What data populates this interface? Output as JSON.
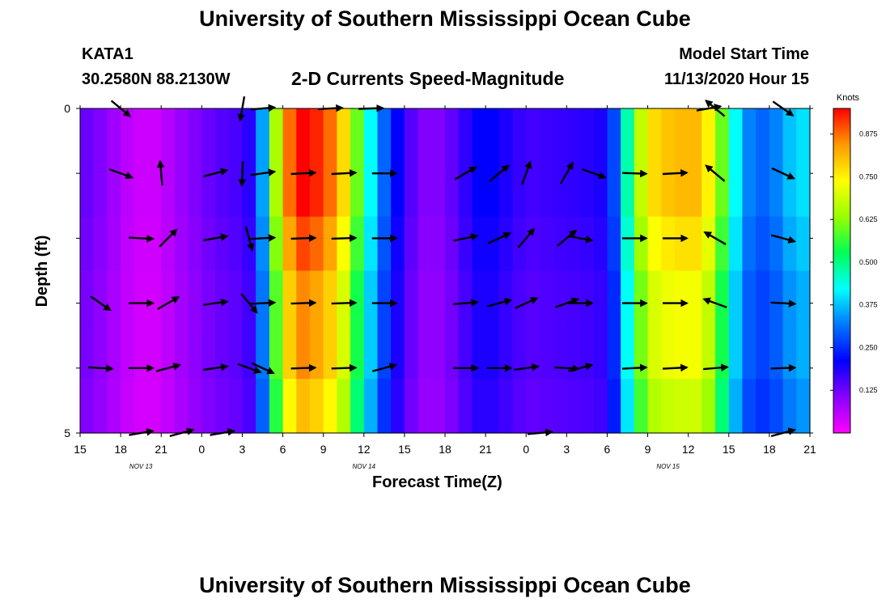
{
  "header": {
    "title": "University of Southern Mississippi Ocean Cube",
    "station": "KATA1",
    "coordinates": "30.2580N 88.2130W",
    "model_start_label": "Model Start Time",
    "model_start_value": "11/13/2020 Hour 15"
  },
  "footer": {
    "title": "University of Southern Mississippi Ocean Cube"
  },
  "chart_data": {
    "type": "heatmap",
    "title": "2-D Currents Speed-Magnitude",
    "xlabel": "Forecast Time(Z)",
    "ylabel": "Depth (ft)",
    "x_tick_labels": [
      "15",
      "18",
      "21",
      "0",
      "3",
      "6",
      "9",
      "12",
      "15",
      "18",
      "21",
      "0",
      "3",
      "6",
      "9",
      "12",
      "15",
      "18",
      "21"
    ],
    "day_labels": [
      {
        "label": "NOV 13",
        "tick_index": 1.5
      },
      {
        "label": "NOV 14",
        "tick_index": 7
      },
      {
        "label": "NOV 15",
        "tick_index": 14.5
      }
    ],
    "y_tick_labels": [
      {
        "value": 0,
        "label": "0"
      },
      {
        "value": 1,
        "label": ""
      },
      {
        "value": 2,
        "label": ""
      },
      {
        "value": 3,
        "label": ""
      },
      {
        "value": 4,
        "label": ""
      },
      {
        "value": 5,
        "label": "5"
      }
    ],
    "x_range_hours": [
      0,
      54
    ],
    "y_range_ft": [
      0,
      5
    ],
    "colorbar": {
      "label": "Knots",
      "range": [
        0,
        0.95
      ],
      "tick_values": [
        0.125,
        0.25,
        0.375,
        0.5,
        0.625,
        0.75,
        0.875
      ],
      "tick_labels": [
        "0.125",
        "0.250",
        "0.375",
        "0.500",
        "0.625",
        "0.750",
        "0.875"
      ],
      "colors": [
        "#ff00ff",
        "#8800ff",
        "#0000ff",
        "#0077ff",
        "#00ffff",
        "#00ff55",
        "#99ff00",
        "#ffff00",
        "#ff9900",
        "#ff0000"
      ]
    },
    "speed_hourly": [
      0.14,
      0.12,
      0.1,
      0.07,
      0.05,
      0.04,
      0.05,
      0.08,
      0.1,
      0.12,
      0.14,
      0.15,
      0.16,
      0.2,
      0.5,
      0.8,
      0.95,
      0.95,
      0.9,
      0.85,
      0.7,
      0.5,
      0.35,
      0.25,
      0.17,
      0.12,
      0.1,
      0.12,
      0.15,
      0.2,
      0.22,
      0.2,
      0.18,
      0.16,
      0.16,
      0.17,
      0.17,
      0.18,
      0.18,
      0.2,
      0.35,
      0.6,
      0.75,
      0.8,
      0.8,
      0.82,
      0.8,
      0.7,
      0.5,
      0.35,
      0.3,
      0.3,
      0.35,
      0.4,
      0.4
    ],
    "depth_factor": [
      1.0,
      1.0,
      0.95,
      0.9,
      0.9,
      0.85
    ],
    "arrows": [
      {
        "hour": 3,
        "depth": 0,
        "angle": 40
      },
      {
        "hour": 12,
        "depth": 0,
        "angle": 100
      },
      {
        "hour": 13.5,
        "depth": 0,
        "angle": -5
      },
      {
        "hour": 18.5,
        "depth": 0,
        "angle": -3
      },
      {
        "hour": 21.5,
        "depth": 0,
        "angle": -2
      },
      {
        "hour": 46.5,
        "depth": 0,
        "angle": -10
      },
      {
        "hour": 47,
        "depth": 0,
        "angle": -140
      },
      {
        "hour": 52,
        "depth": 0,
        "angle": 35
      },
      {
        "hour": 3,
        "depth": 1,
        "angle": 20
      },
      {
        "hour": 6,
        "depth": 1,
        "angle": -95
      },
      {
        "hour": 10,
        "depth": 1,
        "angle": -15
      },
      {
        "hour": 12,
        "depth": 1,
        "angle": 92
      },
      {
        "hour": 13.5,
        "depth": 1,
        "angle": -8
      },
      {
        "hour": 16.5,
        "depth": 1,
        "angle": -3
      },
      {
        "hour": 19.5,
        "depth": 1,
        "angle": -3
      },
      {
        "hour": 22.5,
        "depth": 1,
        "angle": 0
      },
      {
        "hour": 28.5,
        "depth": 1,
        "angle": -30
      },
      {
        "hour": 31,
        "depth": 1,
        "angle": -40
      },
      {
        "hour": 33,
        "depth": 1,
        "angle": -70
      },
      {
        "hour": 36,
        "depth": 1,
        "angle": -60
      },
      {
        "hour": 38,
        "depth": 1,
        "angle": 20
      },
      {
        "hour": 41,
        "depth": 1,
        "angle": 2
      },
      {
        "hour": 44,
        "depth": 1,
        "angle": -3
      },
      {
        "hour": 47,
        "depth": 1,
        "angle": -140
      },
      {
        "hour": 52,
        "depth": 1,
        "angle": 25
      },
      {
        "hour": 4.5,
        "depth": 2,
        "angle": 3
      },
      {
        "hour": 6.5,
        "depth": 2,
        "angle": -45
      },
      {
        "hour": 10,
        "depth": 2,
        "angle": -10
      },
      {
        "hour": 12.5,
        "depth": 2,
        "angle": 75
      },
      {
        "hour": 13.5,
        "depth": 2,
        "angle": -3
      },
      {
        "hour": 16.5,
        "depth": 2,
        "angle": -2
      },
      {
        "hour": 19.5,
        "depth": 2,
        "angle": -2
      },
      {
        "hour": 22.5,
        "depth": 2,
        "angle": 0
      },
      {
        "hour": 28.5,
        "depth": 2,
        "angle": -12
      },
      {
        "hour": 31,
        "depth": 2,
        "angle": -25
      },
      {
        "hour": 33,
        "depth": 2,
        "angle": -50
      },
      {
        "hour": 36,
        "depth": 2,
        "angle": -40
      },
      {
        "hour": 37,
        "depth": 2,
        "angle": 10
      },
      {
        "hour": 41,
        "depth": 2,
        "angle": 0
      },
      {
        "hour": 44,
        "depth": 2,
        "angle": 0
      },
      {
        "hour": 47,
        "depth": 2,
        "angle": -150
      },
      {
        "hour": 52,
        "depth": 2,
        "angle": 15
      },
      {
        "hour": 1.5,
        "depth": 3,
        "angle": 35
      },
      {
        "hour": 4.5,
        "depth": 3,
        "angle": 0
      },
      {
        "hour": 6.5,
        "depth": 3,
        "angle": -30
      },
      {
        "hour": 10,
        "depth": 3,
        "angle": -8
      },
      {
        "hour": 12.5,
        "depth": 3,
        "angle": 50
      },
      {
        "hour": 13.5,
        "depth": 3,
        "angle": -3
      },
      {
        "hour": 16.5,
        "depth": 3,
        "angle": -2
      },
      {
        "hour": 19.5,
        "depth": 3,
        "angle": -2
      },
      {
        "hour": 22.5,
        "depth": 3,
        "angle": 0
      },
      {
        "hour": 28.5,
        "depth": 3,
        "angle": -5
      },
      {
        "hour": 31,
        "depth": 3,
        "angle": -15
      },
      {
        "hour": 33,
        "depth": 3,
        "angle": -25
      },
      {
        "hour": 36,
        "depth": 3,
        "angle": -20
      },
      {
        "hour": 37,
        "depth": 3,
        "angle": 0
      },
      {
        "hour": 41,
        "depth": 3,
        "angle": 0
      },
      {
        "hour": 44,
        "depth": 3,
        "angle": 0
      },
      {
        "hour": 47,
        "depth": 3,
        "angle": -160
      },
      {
        "hour": 52,
        "depth": 3,
        "angle": 3
      },
      {
        "hour": 1.5,
        "depth": 4,
        "angle": 3
      },
      {
        "hour": 4.5,
        "depth": 4,
        "angle": 0
      },
      {
        "hour": 6.5,
        "depth": 4,
        "angle": -15
      },
      {
        "hour": 10,
        "depth": 4,
        "angle": -8
      },
      {
        "hour": 12.5,
        "depth": 4,
        "angle": 20
      },
      {
        "hour": 13.5,
        "depth": 4,
        "angle": 25
      },
      {
        "hour": 16.5,
        "depth": 4,
        "angle": -2
      },
      {
        "hour": 19.5,
        "depth": 4,
        "angle": -2
      },
      {
        "hour": 22.5,
        "depth": 4,
        "angle": -15
      },
      {
        "hour": 28.5,
        "depth": 4,
        "angle": 0
      },
      {
        "hour": 31,
        "depth": 4,
        "angle": 0
      },
      {
        "hour": 33,
        "depth": 4,
        "angle": -8
      },
      {
        "hour": 36,
        "depth": 4,
        "angle": 3
      },
      {
        "hour": 37,
        "depth": 4,
        "angle": -15
      },
      {
        "hour": 41,
        "depth": 4,
        "angle": -3
      },
      {
        "hour": 44,
        "depth": 4,
        "angle": -3
      },
      {
        "hour": 47,
        "depth": 4,
        "angle": -5
      },
      {
        "hour": 52,
        "depth": 4,
        "angle": -2
      },
      {
        "hour": 4.5,
        "depth": 5,
        "angle": -10
      },
      {
        "hour": 7.5,
        "depth": 5,
        "angle": -15
      },
      {
        "hour": 10.5,
        "depth": 5,
        "angle": -10
      },
      {
        "hour": 34,
        "depth": 5,
        "angle": -5
      },
      {
        "hour": 52,
        "depth": 5,
        "angle": -15
      }
    ]
  }
}
